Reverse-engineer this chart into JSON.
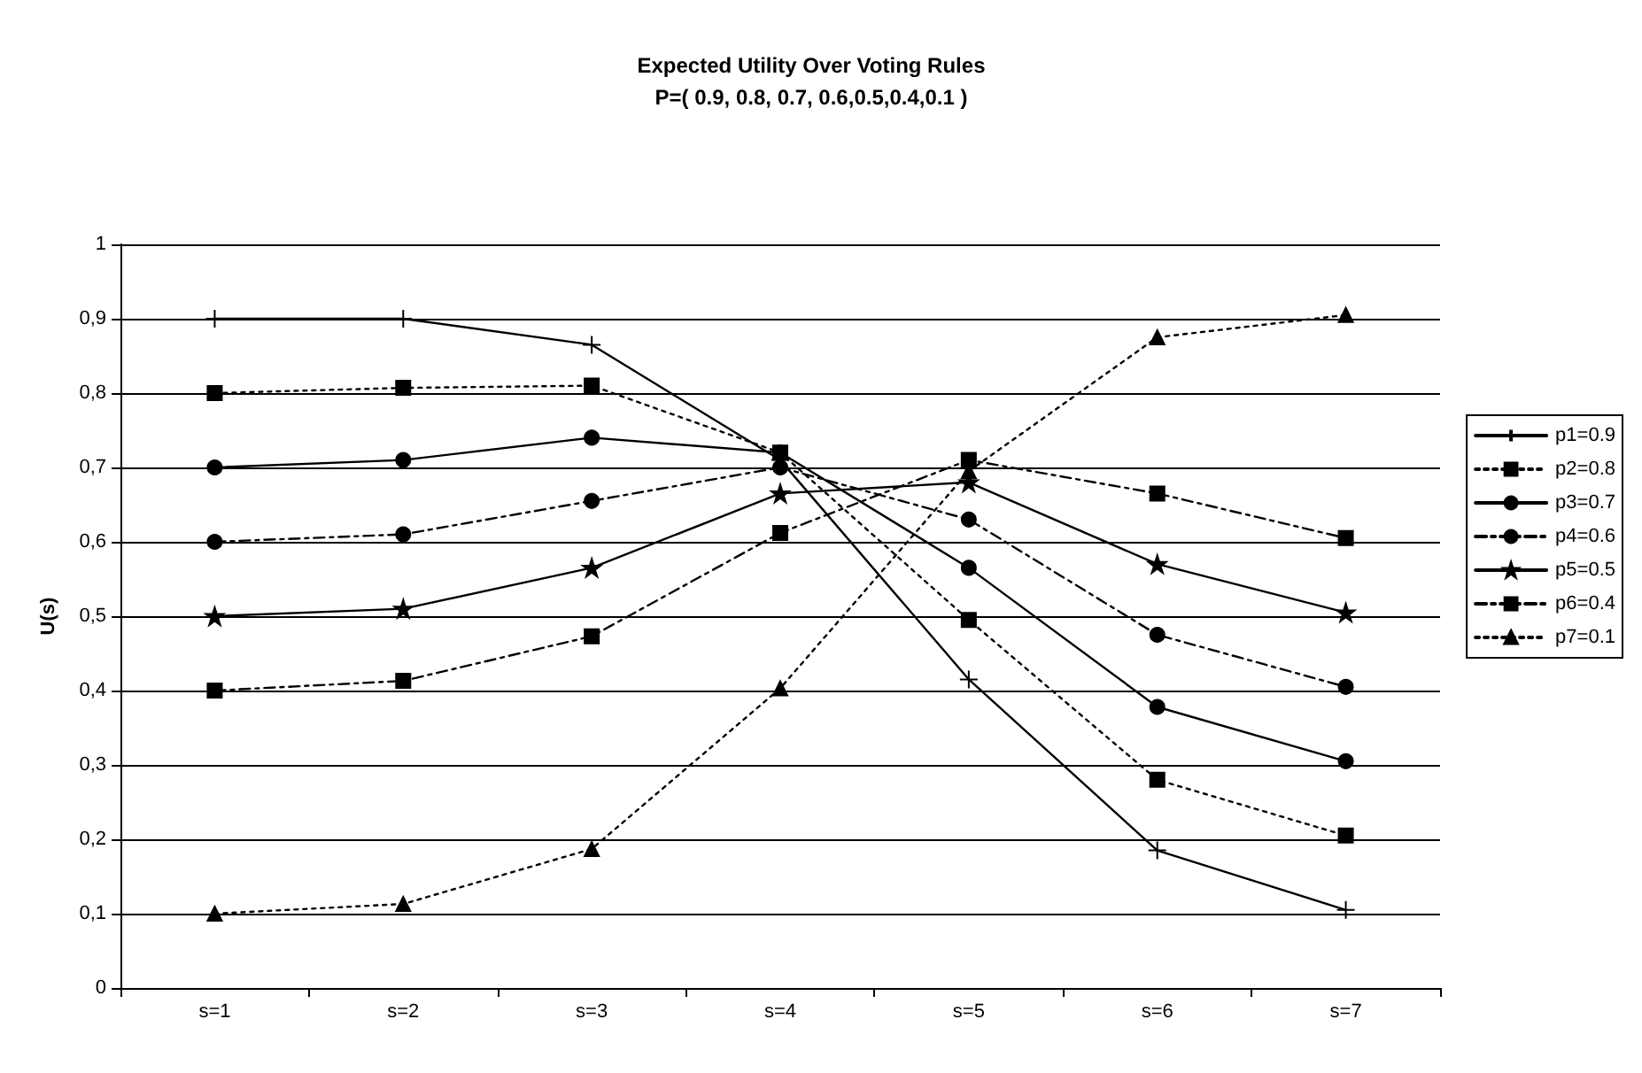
{
  "chart_data": {
    "type": "line",
    "title": "Expected Utility Over Voting Rules",
    "subtitle": "P=( 0.9, 0.8, 0.7, 0.6,0.5,0.4,0.1 )",
    "ylabel": "U(s)",
    "categories": [
      "s=1",
      "s=2",
      "s=3",
      "s=4",
      "s=5",
      "s=6",
      "s=7"
    ],
    "ylim": [
      0,
      1
    ],
    "yticks": [
      0,
      {
        "value": 0.1,
        "label": "0,1"
      },
      {
        "value": 0.2,
        "label": "0,2"
      },
      {
        "value": 0.3,
        "label": "0,3"
      },
      {
        "value": 0.4,
        "label": "0,4"
      },
      {
        "value": 0.5,
        "label": "0,5"
      },
      {
        "value": 0.6,
        "label": "0,6"
      },
      {
        "value": 0.7,
        "label": "0,7"
      },
      {
        "value": 0.8,
        "label": "0,8"
      },
      {
        "value": 0.9,
        "label": "0,9"
      },
      1
    ],
    "grid": "y",
    "legend": "right",
    "series": [
      {
        "name": "p1=0.9",
        "color": "#000000",
        "marker": "cross",
        "line_style": "solid",
        "values": [
          0.9,
          0.9,
          0.865,
          0.71,
          0.415,
          0.185,
          0.105
        ]
      },
      {
        "name": "p2=0.8",
        "color": "#000000",
        "marker": "square",
        "line_style": "dotted",
        "values": [
          0.8,
          0.807,
          0.81,
          0.72,
          0.495,
          0.28,
          0.205
        ]
      },
      {
        "name": "p3=0.7",
        "color": "#000000",
        "marker": "circle",
        "line_style": "solid",
        "values": [
          0.7,
          0.71,
          0.74,
          0.72,
          0.565,
          0.378,
          0.305
        ]
      },
      {
        "name": "p4=0.6",
        "color": "#000000",
        "marker": "circle",
        "line_style": "dashed",
        "values": [
          0.6,
          0.61,
          0.655,
          0.7,
          0.63,
          0.475,
          0.405
        ]
      },
      {
        "name": "p5=0.5",
        "color": "#000000",
        "marker": "star",
        "line_style": "solid",
        "values": [
          0.5,
          0.51,
          0.565,
          0.665,
          0.68,
          0.57,
          0.505
        ]
      },
      {
        "name": "p6=0.4",
        "color": "#000000",
        "marker": "square",
        "line_style": "dashed",
        "values": [
          0.4,
          0.413,
          0.473,
          0.612,
          0.71,
          0.665,
          0.605
        ]
      },
      {
        "name": "p7=0.1",
        "color": "#000000",
        "marker": "triangle",
        "line_style": "dotted",
        "values": [
          0.1,
          0.113,
          0.187,
          0.403,
          0.695,
          0.875,
          0.905
        ]
      }
    ]
  }
}
